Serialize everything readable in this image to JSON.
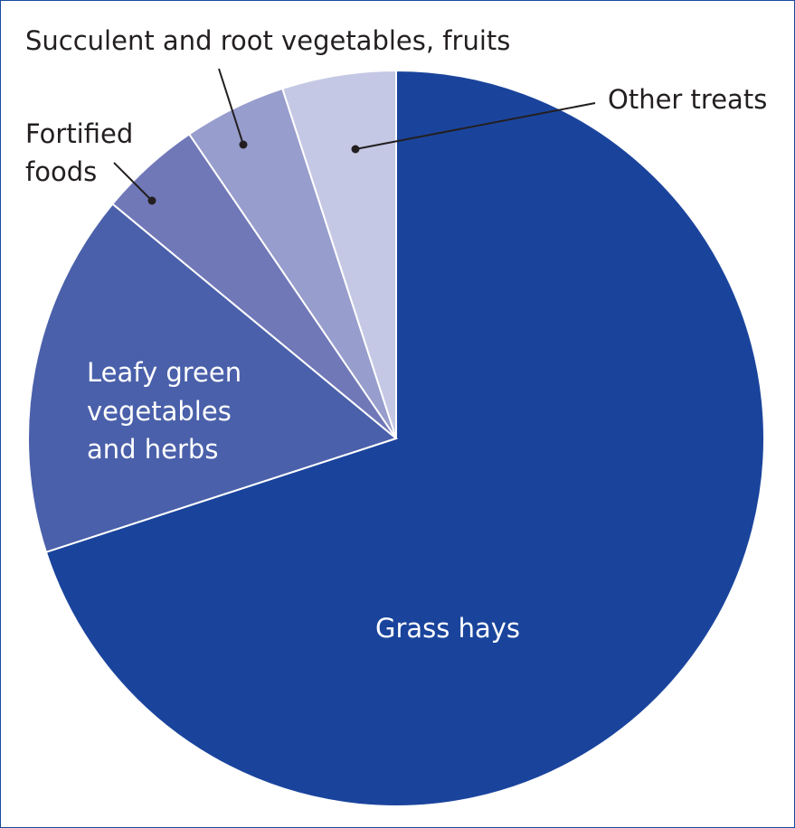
{
  "chart_data": {
    "type": "pie",
    "title": "",
    "start_angle_deg": 0,
    "direction": "clockwise",
    "slices": [
      {
        "label": "Grass hays",
        "value": 70,
        "color": "#1a449c"
      },
      {
        "label": "Leafy green vegetables and herbs",
        "value": 16,
        "color": "#4a60aa"
      },
      {
        "label": "Fortified foods",
        "value": 4.5,
        "color": "#7078b8"
      },
      {
        "label": "Succulent and root vegetables, fruits",
        "value": 4.5,
        "color": "#979dcc"
      },
      {
        "label": "Other treats",
        "value": 5,
        "color": "#c5c8e4"
      }
    ],
    "labels": {
      "grass_hays": "Grass hays",
      "leafy_line1": "Leafy green",
      "leafy_line2": "vegetables",
      "leafy_line3": "and herbs",
      "fortified_line1": "Fortified",
      "fortified_line2": "foods",
      "succulent": "Succulent and root vegetables, fruits",
      "other_treats": "Other treats"
    }
  }
}
